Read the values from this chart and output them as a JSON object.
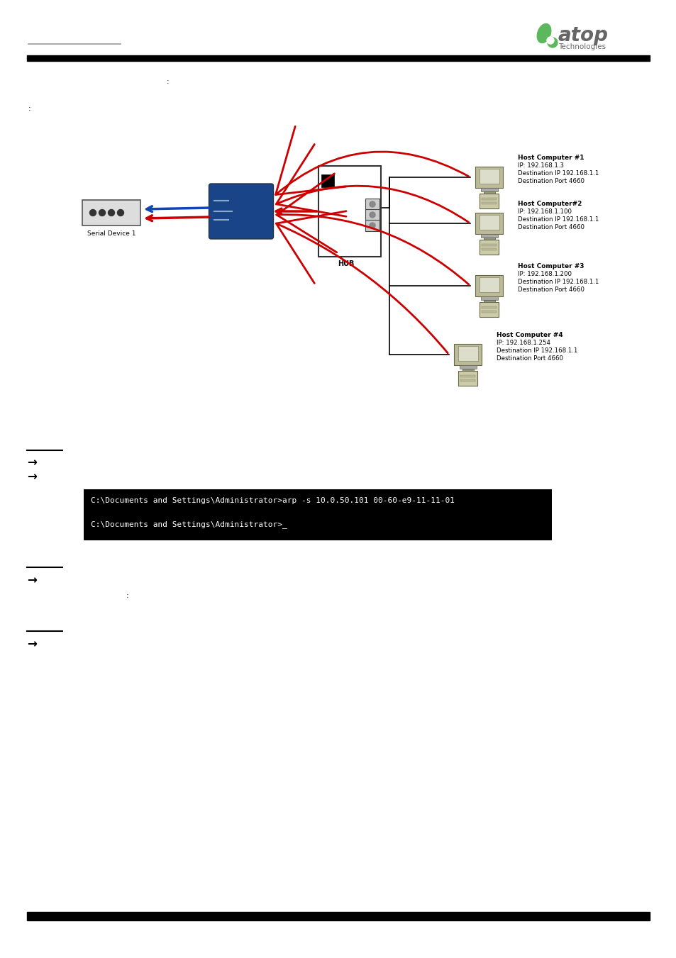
{
  "cmd_line1": "C:\\Documents and Settings\\Administrator>arp -s 10.0.50.101 00-60-e9-11-11-01",
  "cmd_line2": "C:\\Documents and Settings\\Administrator>_",
  "cmd_bg": "#000000",
  "bg_color": "#ffffff",
  "host1_label": "Host Computer #1",
  "host1_ip": "IP: 192.168.1.3",
  "host1_dst_ip": "Destination IP 192.168.1.1",
  "host1_dst_port": "Destination Port 4660",
  "host2_label": "Host Computer#2",
  "host2_ip": "IP: 192.168.1.100",
  "host2_dst_ip": "Destination IP 192.168.1.1",
  "host2_dst_port": "Destination Port 4660",
  "host3_label": "Host Computer #3",
  "host3_ip": "IP: 192.168.1.200",
  "host3_dst_ip": "Destination IP 192.168.1.1",
  "host3_dst_port": "Destination Port 4660",
  "host4_label": "Host Computer #4",
  "host4_ip": "IP: 192.168.1.254",
  "host4_dst_ip": "Destination IP 192.168.1.1",
  "host4_dst_port": "Destination Port 4660",
  "serial_device_label": "Serial Device 1",
  "hub_label": "HUB",
  "arrow_red": "#cc0000",
  "arrow_blue": "#1144bb",
  "atop_green": "#5cb85c",
  "atop_gray": "#666666",
  "fig_width": 9.54,
  "fig_height": 13.51,
  "dpi": 100
}
